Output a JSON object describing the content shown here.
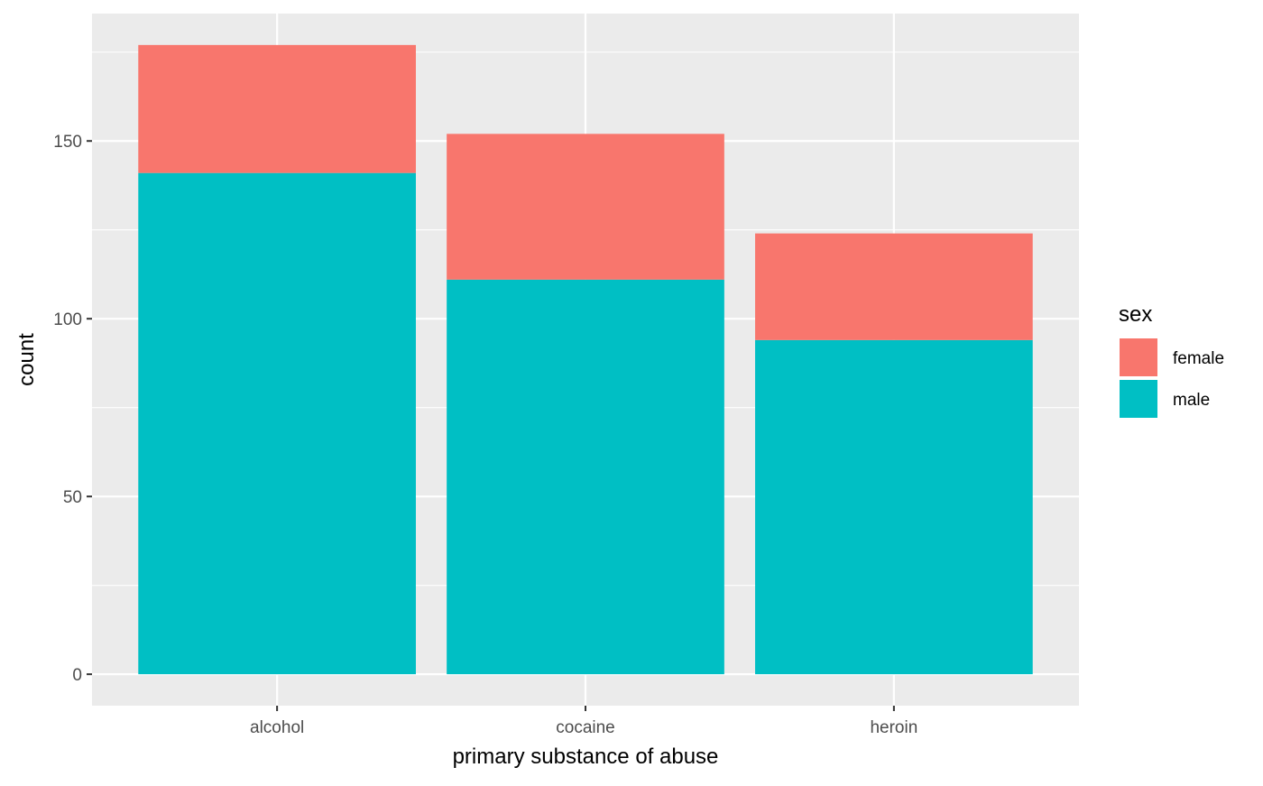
{
  "chart_data": {
    "type": "bar",
    "stacked": true,
    "categories": [
      "alcohol",
      "cocaine",
      "heroin"
    ],
    "series": [
      {
        "name": "female",
        "values": [
          36,
          41,
          30
        ],
        "color": "#F8766D"
      },
      {
        "name": "male",
        "values": [
          141,
          111,
          94
        ],
        "color": "#00BFC4"
      }
    ],
    "totals": [
      177,
      152,
      124
    ],
    "xlabel": "primary substance of abuse",
    "ylabel": "count",
    "ylim": [
      -8.85,
      185.85
    ],
    "yticks": [
      0,
      50,
      100,
      150
    ],
    "yticks_minor": [
      25,
      75,
      125,
      175
    ],
    "grid": true,
    "legend": {
      "title": "sex",
      "position": "right"
    },
    "colors": {
      "panel_background": "#EBEBEB",
      "gridline": "#FFFFFF",
      "axis_text": "#4D4D4D",
      "axis_tick": "#333333",
      "title_text": "#000000"
    }
  }
}
